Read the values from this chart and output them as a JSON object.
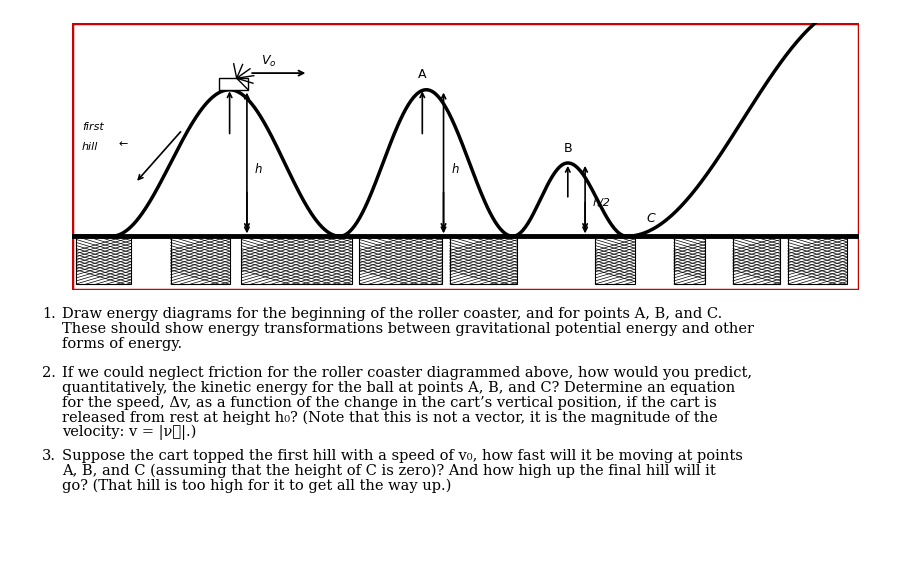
{
  "fig_width": 9.04,
  "fig_height": 5.79,
  "bg_color": "#ffffff",
  "box_color": "#cc0000",
  "q1_num": "1.",
  "q1_text": "Draw energy diagrams for the beginning of the roller coaster, and for points A, B, and C.\n   These should show energy transformations between gravitational potential energy and other\n   forms of energy.",
  "q2_num": "2.",
  "q2_line1": "If we could neglect friction for the roller coaster diagrammed above, how would you predict,",
  "q2_line2": "   quantitatively, the kinetic energy for the ball at points A, B, and C? Determine an equation",
  "q2_line3": "   for the speed, Δv, as a function of the change in the cart’s vertical position, if the cart is",
  "q2_line4": "   released from rest at height h₀? (Note that this is not a vector, it is the magnitude of the",
  "q2_line5": "   velocity: v = |ν⃗|.)",
  "q3_num": "3.",
  "q3_line1": "Suppose the cart topped the first hill with a speed of v₀, how fast will it be moving at points",
  "q3_line2": "   A, B, and C (assuming that the height of C is zero)? And how high up the final hill will it",
  "q3_line3": "   go? (That hill is too high for it to get all the way up.)"
}
